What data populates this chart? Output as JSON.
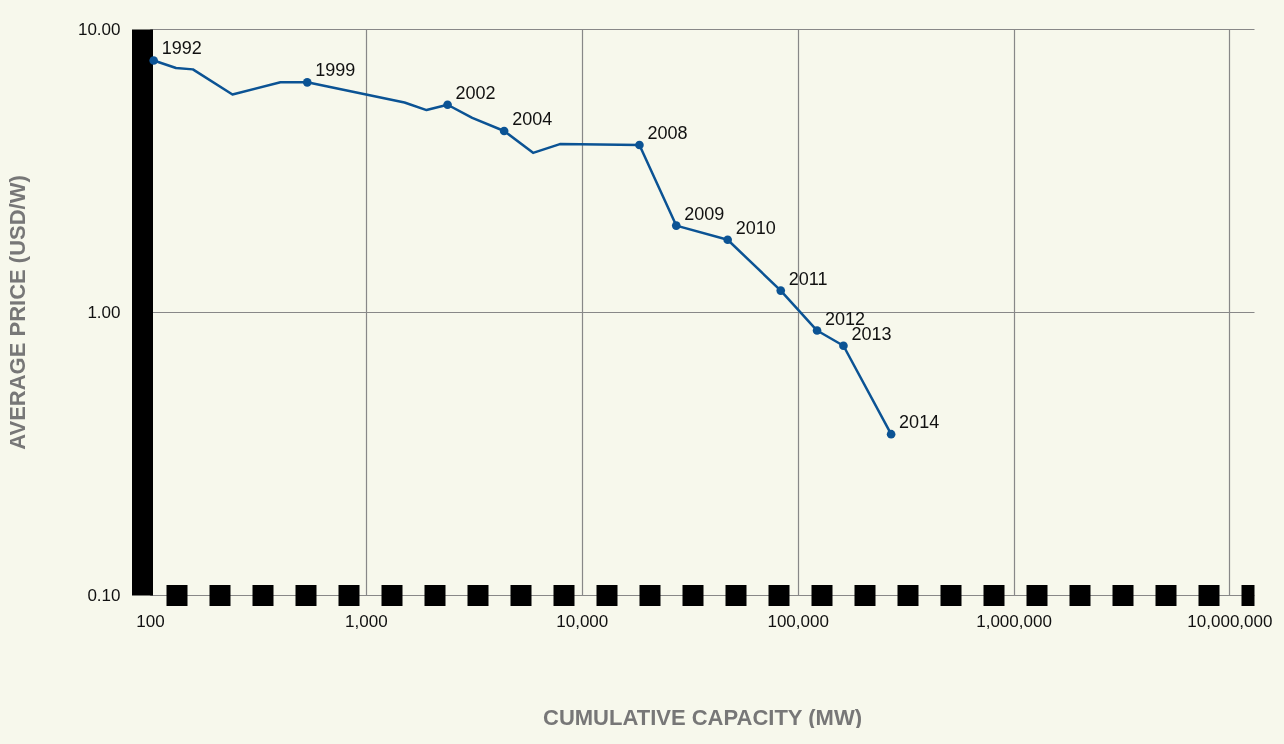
{
  "chart_data": {
    "type": "line",
    "xlabel": "CUMULATIVE CAPACITY (MW)",
    "ylabel": "AVERAGE PRICE (USD/W)",
    "log": "xy",
    "grid": true,
    "xlim": [
      100,
      13000000
    ],
    "ylim": [
      0.1,
      10
    ],
    "xticks": [
      100,
      {
        "value": 1000,
        "label": "1,000"
      },
      {
        "value": 10000,
        "label": "10,000"
      },
      {
        "value": 100000,
        "label": "100,000"
      },
      {
        "value": 1000000,
        "label": "1,000,000"
      },
      {
        "value": 10000000,
        "label": "10,000,000"
      }
    ],
    "yticks": [
      {
        "value": 0.1,
        "label": "0.10"
      },
      {
        "value": 1,
        "label": "1.00"
      },
      {
        "value": 10,
        "label": "10.00"
      }
    ],
    "series": [
      {
        "color": "#0b5394",
        "marker": "none",
        "x": [
          104,
          132,
          158,
          241,
          402,
          535,
          1510,
          1910,
          2390,
          3110,
          4370,
          5950,
          7920,
          18500,
          27400,
          47400,
          83500,
          123000,
          163000,
          271000
        ],
        "values": [
          7.74,
          7.28,
          7.2,
          5.87,
          6.48,
          6.48,
          5.5,
          5.17,
          5.4,
          4.85,
          4.36,
          3.65,
          3.92,
          3.89,
          2.02,
          1.8,
          1.19,
          0.86,
          0.76,
          0.37
        ]
      },
      {
        "type": "scatter",
        "color": "#0b5394",
        "marker": "circle",
        "x": [
          104,
          535,
          2390,
          4370,
          18500,
          27400,
          47400,
          83500,
          123000,
          163000,
          271000
        ],
        "values": [
          7.74,
          6.48,
          5.4,
          4.36,
          3.89,
          2.02,
          1.8,
          1.19,
          0.86,
          0.76,
          0.37
        ]
      }
    ],
    "annotations": [
      {
        "text": "1992",
        "x": 104,
        "y": 7.74
      },
      {
        "text": "1999",
        "x": 535,
        "y": 6.48
      },
      {
        "text": "2002",
        "x": 2390,
        "y": 5.4
      },
      {
        "text": "2004",
        "x": 4370,
        "y": 4.36
      },
      {
        "text": "2008",
        "x": 18500,
        "y": 3.89
      },
      {
        "text": "2009",
        "x": 27400,
        "y": 2.02
      },
      {
        "text": "2010",
        "x": 47400,
        "y": 1.8
      },
      {
        "text": "2011",
        "x": 83500,
        "y": 1.19
      },
      {
        "text": "2012",
        "x": 123000,
        "y": 0.86
      },
      {
        "text": "2013",
        "x": 163000,
        "y": 0.76
      },
      {
        "text": "2014",
        "x": 271000,
        "y": 0.37
      }
    ]
  }
}
